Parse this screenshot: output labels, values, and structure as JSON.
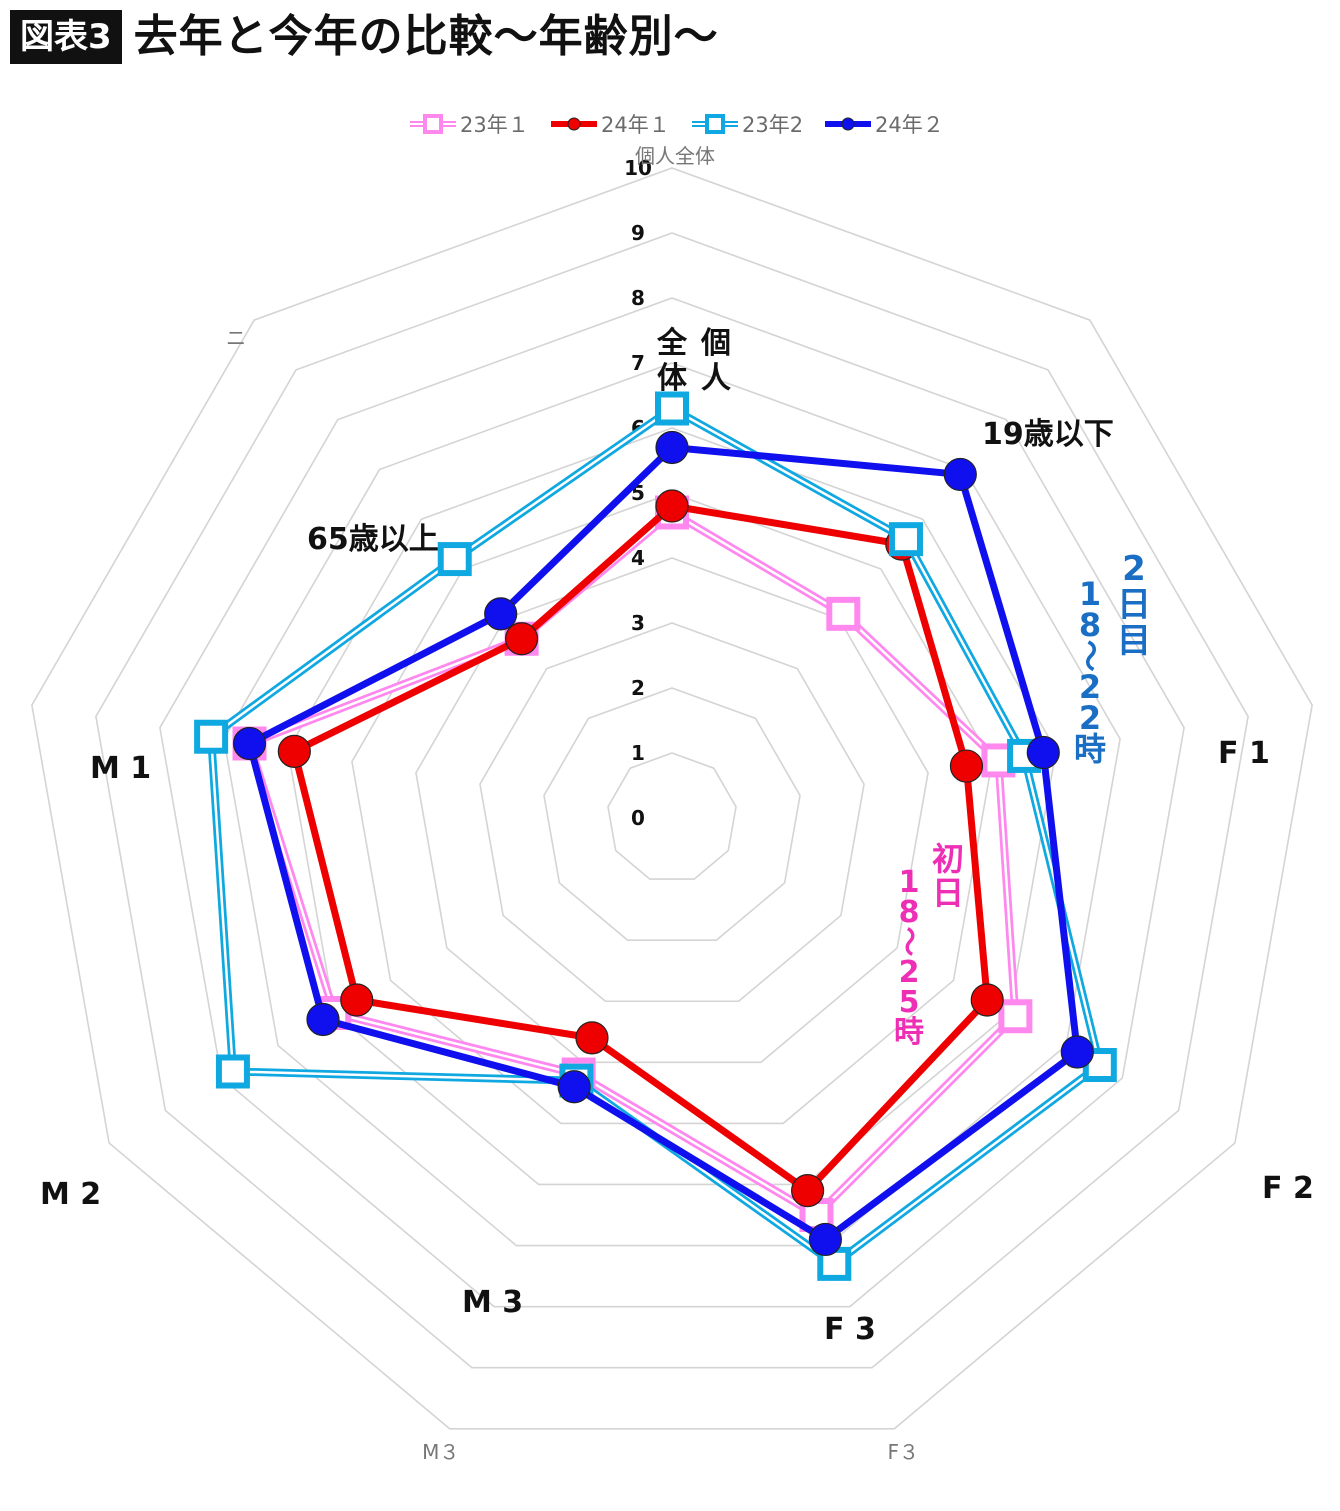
{
  "header": {
    "badge": "図表3",
    "title": "去年と今年の比較〜年齢別〜"
  },
  "chart_data": {
    "type": "radar",
    "title": "個人全体",
    "axes": [
      "個人全体",
      "19歳以下",
      "F１",
      "F２",
      "F３",
      "M３",
      "M２",
      "M１",
      "65歳以上"
    ],
    "axis_labels_overlay": [
      "個人全体",
      "19歳以下",
      "F 1",
      "F 2",
      "F 3",
      "M 3",
      "M 2",
      "M 1",
      "65歳以上"
    ],
    "axis_labels_base": [
      "M３",
      "F３"
    ],
    "ticks": [
      "0",
      "1",
      "2",
      "3",
      "4",
      "5",
      "6",
      "7",
      "8",
      "9",
      "10"
    ],
    "rlim": [
      0,
      10
    ],
    "grid": true,
    "legend_position": "top",
    "series": [
      {
        "name": "23年１",
        "values": [
          4.7,
          4.1,
          5.1,
          6.1,
          6.5,
          4.2,
          6.0,
          6.6,
          3.6
        ],
        "color": "#ff88ee",
        "marker": "square-double"
      },
      {
        "name": "24年１",
        "values": [
          4.8,
          5.5,
          4.6,
          5.6,
          6.1,
          3.6,
          5.6,
          5.9,
          3.6
        ],
        "color": "#ee0000",
        "marker": "circle"
      },
      {
        "name": "23年2",
        "values": [
          6.3,
          5.6,
          5.5,
          7.6,
          7.3,
          4.3,
          7.8,
          7.2,
          5.2
        ],
        "color": "#10a8e0",
        "marker": "square-double"
      },
      {
        "name": "24年２",
        "values": [
          5.7,
          6.9,
          5.8,
          7.2,
          6.9,
          4.4,
          6.2,
          6.6,
          4.1
        ],
        "color": "#1010ee",
        "marker": "circle"
      }
    ],
    "annotations": [
      {
        "text": "2日目",
        "color": "#1a6fc4"
      },
      {
        "text": "18〜22時",
        "color": "#1a6fc4"
      },
      {
        "text": "初日",
        "color": "#ee2fb5"
      },
      {
        "text": "18〜25時",
        "color": "#ee2fb5"
      }
    ],
    "stray_mark": "ニ"
  }
}
